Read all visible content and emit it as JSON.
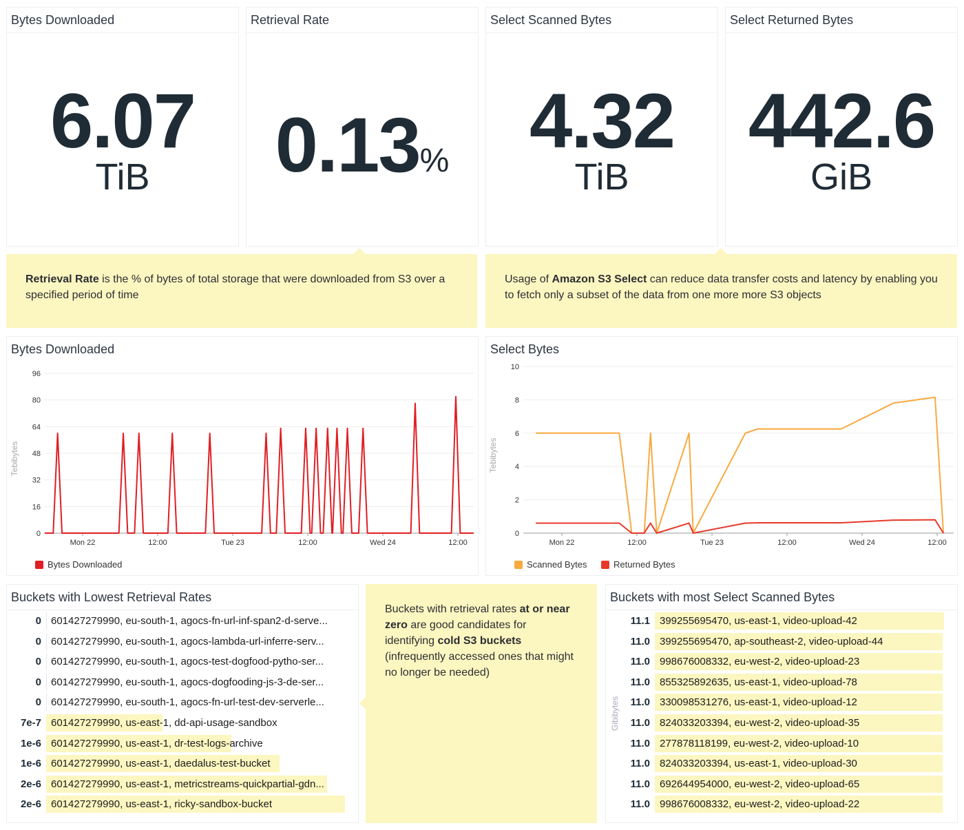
{
  "widgets": [
    {
      "title": "Bytes Downloaded",
      "value": "6.07",
      "unit": "TiB"
    },
    {
      "title": "Retrieval Rate",
      "value": "0.13",
      "unit": "%"
    },
    {
      "title": "Select Scanned Bytes",
      "value": "4.32",
      "unit": "TiB"
    },
    {
      "title": "Select Returned Bytes",
      "value": "442.6",
      "unit": "GiB"
    }
  ],
  "notes": {
    "retrieval": {
      "bold": "Retrieval Rate",
      "text": " is the % of bytes of total storage that were downloaded from S3 over a specified period of time"
    },
    "select": {
      "pre": "Usage of ",
      "bold": "Amazon S3 Select",
      "text": " can reduce data transfer costs and latency by enabling you to fetch only a subset of the data from one more more S3 objects"
    },
    "cold": {
      "pre": "Buckets with retrieval rates ",
      "bold1": "at or near zero",
      "mid": " are good candidates for identifying ",
      "bold2": "cold S3 buckets",
      "post": " (infrequently accessed ones that might no longer be needed)"
    }
  },
  "chart_data": [
    {
      "type": "line",
      "title": "Bytes Downloaded",
      "ylabel": "Tebibytes",
      "ylim": [
        0,
        96
      ],
      "yticks": [
        "0",
        "16",
        "32",
        "48",
        "64",
        "80",
        "96"
      ],
      "xticks": [
        "Mon 22",
        "12:00",
        "Tue 23",
        "12:00",
        "Wed 24",
        "12:00"
      ],
      "grid": true,
      "legend": "bottom-left",
      "series": [
        {
          "name": "Bytes Downloaded",
          "color": "#e01e23",
          "style": "spikes",
          "points": [
            [
              "Sun 21 20:00",
              60
            ],
            [
              "Mon 22 06:30",
              60
            ],
            [
              "Mon 22 09:00",
              60
            ],
            [
              "Mon 22 14:20",
              60
            ],
            [
              "Mon 22 20:20",
              60
            ],
            [
              "Tue 23 05:20",
              60
            ],
            [
              "Tue 23 07:40",
              63
            ],
            [
              "Tue 23 11:40",
              63
            ],
            [
              "Tue 23 13:20",
              63
            ],
            [
              "Tue 23 15:10",
              63
            ],
            [
              "Tue 23 16:40",
              63
            ],
            [
              "Tue 23 18:20",
              63
            ],
            [
              "Tue 23 20:50",
              63
            ],
            [
              "Wed 24 05:10",
              78
            ],
            [
              "Wed 24 11:40",
              82
            ]
          ]
        }
      ]
    },
    {
      "type": "line",
      "title": "Select Bytes",
      "ylabel": "Tebibytes",
      "ylim": [
        0,
        10
      ],
      "yticks": [
        "0",
        "2",
        "4",
        "6",
        "8",
        "10"
      ],
      "xticks": [
        "Mon 22",
        "12:00",
        "Tue 23",
        "12:00",
        "Wed 24",
        "12:00"
      ],
      "grid": true,
      "legend": "bottom-left",
      "series": [
        {
          "name": "Scanned Bytes",
          "color": "#f8a93f",
          "points": [
            [
              "Sun 21 19:50",
              6
            ],
            [
              "Mon 22 09:10",
              6
            ],
            [
              "Mon 22 11:10",
              0
            ],
            [
              "Mon 22 13:10",
              0
            ],
            [
              "Mon 22 14:10",
              6
            ],
            [
              "Mon 22 15:10",
              0
            ],
            [
              "Mon 22 20:20",
              6
            ],
            [
              "Mon 22 21:00",
              0
            ],
            [
              "Tue 23 05:20",
              6
            ],
            [
              "Tue 23 07:20",
              6.25
            ],
            [
              "Tue 23 20:40",
              6.25
            ],
            [
              "Wed 24 05:00",
              7.8
            ],
            [
              "Wed 24 11:40",
              8.15
            ],
            [
              "Wed 24 13:00",
              0
            ]
          ]
        },
        {
          "name": "Returned Bytes",
          "color": "#e8382a",
          "points": [
            [
              "Sun 21 19:50",
              0.6
            ],
            [
              "Mon 22 09:10",
              0.6
            ],
            [
              "Mon 22 11:10",
              0
            ],
            [
              "Mon 22 13:10",
              0
            ],
            [
              "Mon 22 14:10",
              0.6
            ],
            [
              "Mon 22 15:10",
              0
            ],
            [
              "Mon 22 20:20",
              0.6
            ],
            [
              "Mon 22 21:00",
              0
            ],
            [
              "Tue 23 05:20",
              0.6
            ],
            [
              "Tue 23 07:20",
              0.62
            ],
            [
              "Tue 23 20:40",
              0.62
            ],
            [
              "Wed 24 05:00",
              0.78
            ],
            [
              "Wed 24 11:40",
              0.8
            ],
            [
              "Wed 24 13:00",
              0
            ]
          ]
        }
      ]
    }
  ],
  "lowest_retrieval": {
    "title": "Buckets with Lowest Retrieval Rates",
    "rows": [
      {
        "value": "0",
        "label": "601427279990, eu-south-1, agocs-fn-url-inf-span2-d-serve...",
        "fill": 0
      },
      {
        "value": "0",
        "label": "601427279990, eu-south-1, agocs-lambda-url-inferre-serv...",
        "fill": 0
      },
      {
        "value": "0",
        "label": "601427279990, eu-south-1, agocs-test-dogfood-pytho-ser...",
        "fill": 0
      },
      {
        "value": "0",
        "label": "601427279990, eu-south-1, agocs-dogfooding-js-3-de-ser...",
        "fill": 0
      },
      {
        "value": "0",
        "label": "601427279990, eu-south-1, agocs-fn-url-test-dev-serverle...",
        "fill": 0
      },
      {
        "value": "7e-7",
        "label": "601427279990, us-east-1, dd-api-usage-sandbox",
        "fill": 0.39
      },
      {
        "value": "1e-6",
        "label": "601427279990, us-east-1, dr-test-logs-archive",
        "fill": 0.62
      },
      {
        "value": "1e-6",
        "label": "601427279990, us-east-1, daedalus-test-bucket",
        "fill": 0.78
      },
      {
        "value": "2e-6",
        "label": "601427279990, us-east-1, metricstreams-quickpartial-gdn...",
        "fill": 0.94
      },
      {
        "value": "2e-6",
        "label": "601427279990, us-east-1, ricky-sandbox-bucket",
        "fill": 1.0
      }
    ]
  },
  "most_scanned": {
    "title": "Buckets with most Select Scanned Bytes",
    "ylabel": "Gibibytes",
    "rows": [
      {
        "value": "11.1",
        "label": "399255695470, us-east-1, video-upload-42",
        "fill": 1.0
      },
      {
        "value": "11.0",
        "label": "399255695470, ap-southeast-2, video-upload-44",
        "fill": 0.995
      },
      {
        "value": "11.0",
        "label": "998676008332, eu-west-2, video-upload-23",
        "fill": 0.995
      },
      {
        "value": "11.0",
        "label": "855325892635, us-east-1, video-upload-78",
        "fill": 0.995
      },
      {
        "value": "11.0",
        "label": "330098531276, us-east-1, video-upload-12",
        "fill": 0.995
      },
      {
        "value": "11.0",
        "label": "824033203394, eu-west-2, video-upload-35",
        "fill": 0.995
      },
      {
        "value": "11.0",
        "label": "277878118199, eu-west-2, video-upload-10",
        "fill": 0.995
      },
      {
        "value": "11.0",
        "label": "824033203394, us-east-1, video-upload-30",
        "fill": 0.995
      },
      {
        "value": "11.0",
        "label": "692644954000, eu-west-2, video-upload-65",
        "fill": 0.995
      },
      {
        "value": "11.0",
        "label": "998676008332, eu-west-2, video-upload-22",
        "fill": 0.995
      }
    ]
  }
}
